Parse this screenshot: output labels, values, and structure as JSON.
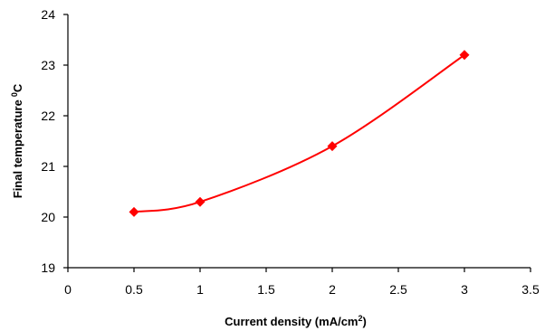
{
  "chart_data": {
    "type": "scatter",
    "title": "",
    "xlabel": "Current density (mA/cm",
    "xlabel_sup": "2",
    "xlabel_close": ")",
    "ylabel": "Final temperature",
    "ylabel_sup": "0",
    "ylabel_unit": "C",
    "xlim": [
      0,
      3.5
    ],
    "ylim": [
      19,
      24
    ],
    "x_ticks": [
      "0",
      "0.5",
      "1",
      "1.5",
      "2",
      "2.5",
      "3",
      "3.5"
    ],
    "y_ticks": [
      "19",
      "20",
      "21",
      "22",
      "23",
      "24"
    ],
    "grid": false,
    "legend": "none",
    "series": [
      {
        "color": "#ff0000",
        "marker": "diamond",
        "line": "smooth",
        "x": [
          0.5,
          1,
          2,
          3
        ],
        "y": [
          20.1,
          20.3,
          21.4,
          23.2
        ]
      }
    ]
  }
}
